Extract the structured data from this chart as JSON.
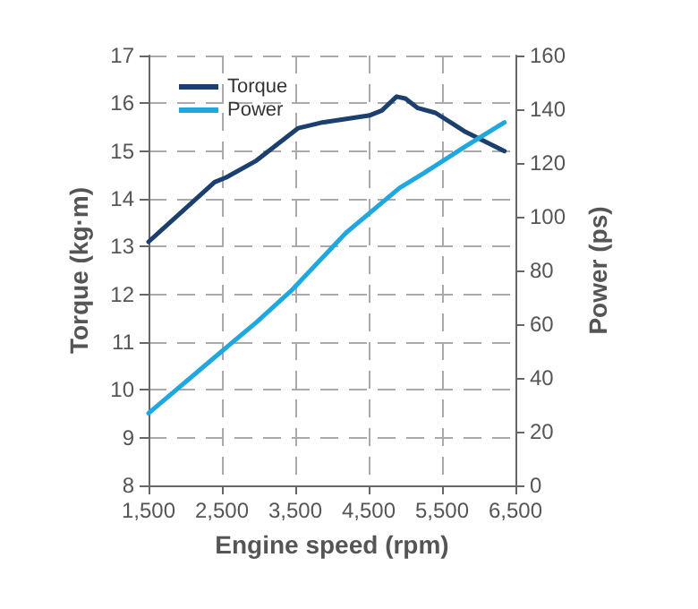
{
  "chart_data": {
    "type": "line",
    "xlabel": "Engine speed (rpm)",
    "ylabel": "Torque (kg·m)",
    "y2label": "Power (ps)",
    "xlim": [
      1500,
      6500
    ],
    "xticks": [
      {
        "value": 1500,
        "label": "1,500"
      },
      {
        "value": 2500,
        "label": "2,500"
      },
      {
        "value": 3500,
        "label": "3,500"
      },
      {
        "value": 4500,
        "label": "4,500"
      },
      {
        "value": 5500,
        "label": "5,500"
      },
      {
        "value": 6500,
        "label": "6,500"
      }
    ],
    "ylim": [
      8,
      17
    ],
    "yticks": [
      8,
      9,
      10,
      11,
      12,
      13,
      14,
      15,
      16,
      17
    ],
    "y2lim": [
      0,
      160
    ],
    "y2ticks": [
      0,
      20,
      40,
      60,
      80,
      100,
      120,
      140,
      160
    ],
    "grid": true,
    "legend": "top left",
    "marker": "none",
    "line_style": "solid",
    "series": [
      {
        "name": "Torque",
        "color": "#1b3f6e",
        "x": [
          1500,
          2400,
          2560,
          2970,
          3540,
          3870,
          4520,
          4680,
          4880,
          5000,
          5170,
          5410,
          5820,
          6350
        ],
        "values": [
          13.1,
          14.35,
          14.45,
          14.8,
          15.48,
          15.6,
          15.75,
          15.85,
          16.14,
          16.1,
          15.9,
          15.8,
          15.4,
          15.0
        ]
      },
      {
        "name": "Power",
        "color": "#1fa7e0",
        "axis": "y2",
        "x": [
          1500,
          2480,
          2970,
          3460,
          4190,
          4920,
          5250,
          5820,
          6350
        ],
        "values": [
          26.9,
          49.5,
          60.7,
          72.9,
          94,
          110.7,
          116.2,
          126.2,
          135.1
        ]
      }
    ]
  }
}
